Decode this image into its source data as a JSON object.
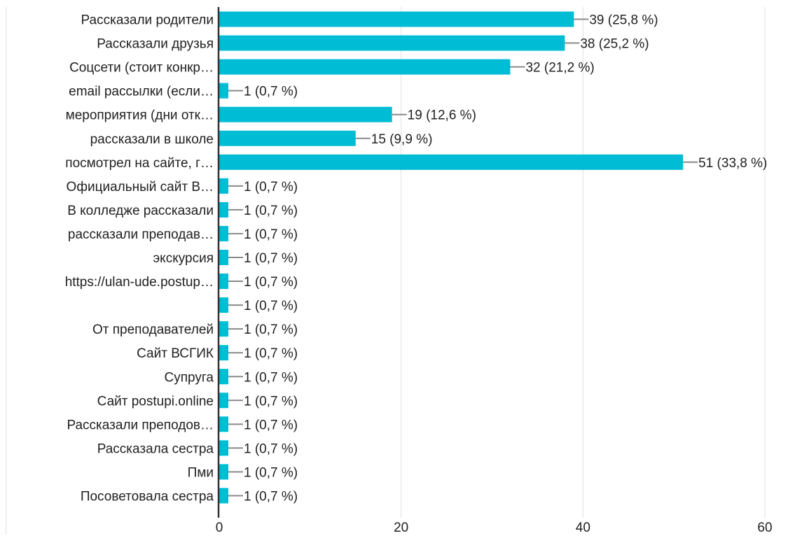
{
  "chart_data": {
    "type": "bar",
    "orientation": "horizontal",
    "categories": [
      "Рассказали родители",
      "Рассказали друзья",
      "Соцсети (стоит конкр…",
      "email рассылки (если…",
      "мероприятия (дни отк…",
      "рассказали в школе",
      "посмотрел на сайте, г…",
      "Официальный сайт В…",
      "В колледже рассказали",
      "рассказали преподав…",
      "экскурсия",
      "https://ulan-ude.postup…",
      "",
      "От преподавателей",
      "Сайт ВСГИК",
      "Супруга",
      "Сайт postupi.online",
      "Рассказали преподов…",
      "Рассказала сестра",
      "Пми",
      "Посоветовала сестра"
    ],
    "values": [
      39,
      38,
      32,
      1,
      19,
      15,
      51,
      1,
      1,
      1,
      1,
      1,
      1,
      1,
      1,
      1,
      1,
      1,
      1,
      1,
      1
    ],
    "data_labels": [
      "39 (25,8 %)",
      "38 (25,2 %)",
      "32 (21,2 %)",
      "1 (0,7 %)",
      "19 (12,6 %)",
      "15 (9,9 %)",
      "51 (33,8 %)",
      "1 (0,7 %)",
      "1 (0,7 %)",
      "1 (0,7 %)",
      "1 (0,7 %)",
      "1 (0,7 %)",
      "1 (0,7 %)",
      "1 (0,7 %)",
      "1 (0,7 %)",
      "1 (0,7 %)",
      "1 (0,7 %)",
      "1 (0,7 %)",
      "1 (0,7 %)",
      "1 (0,7 %)",
      "1 (0,7 %)"
    ],
    "x_ticks": [
      0,
      20,
      40,
      60
    ],
    "xlim": [
      0,
      60
    ],
    "grid": true,
    "title": "",
    "xlabel": "",
    "ylabel": "",
    "colors": {
      "bar": "#00bcd4",
      "grid": "#e0e0e0",
      "axis": "#333333",
      "leader": "#8a8a8a",
      "text": "#212121"
    }
  }
}
